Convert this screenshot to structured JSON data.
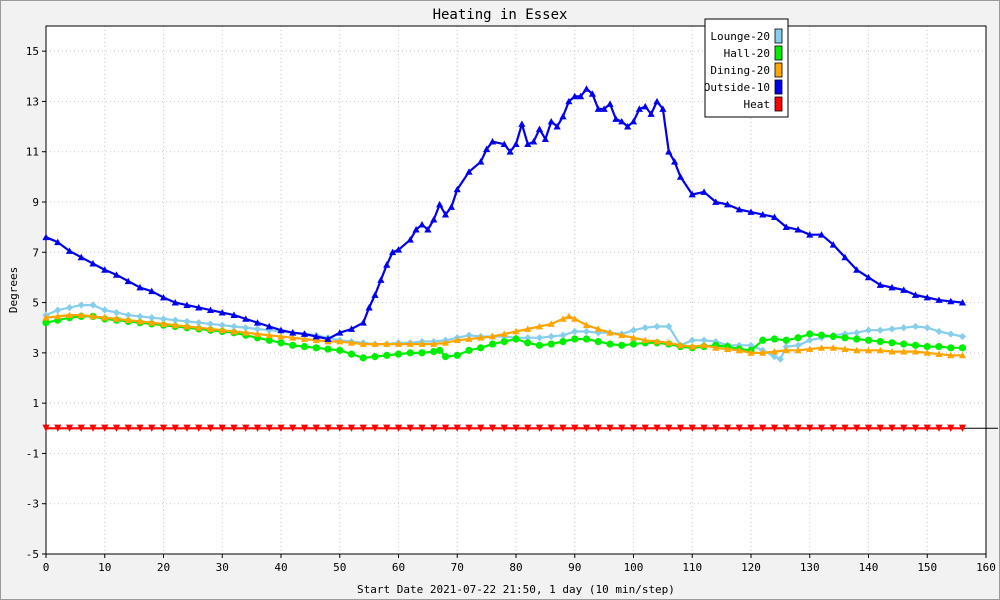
{
  "chart_data": {
    "type": "line",
    "title": "Heating in Essex",
    "xlabel": "Start Date 2021-07-22 21:50, 1 day (10 min/step)",
    "ylabel": "Degrees",
    "xlim": [
      0,
      160
    ],
    "ylim": [
      -5,
      16
    ],
    "x_ticks": [
      0,
      10,
      20,
      30,
      40,
      50,
      60,
      70,
      80,
      90,
      100,
      110,
      120,
      130,
      140,
      150,
      160
    ],
    "y_ticks": [
      -5,
      -3,
      -1,
      1,
      3,
      5,
      7,
      9,
      11,
      13,
      15
    ],
    "grid": true,
    "legend": "top-right",
    "series": [
      {
        "name": "Lounge-20",
        "color": "#87ceeb",
        "marker": "diamond",
        "x": [
          0,
          2,
          4,
          6,
          8,
          10,
          12,
          14,
          16,
          18,
          20,
          22,
          24,
          26,
          28,
          30,
          32,
          34,
          36,
          38,
          40,
          42,
          44,
          46,
          48,
          50,
          52,
          54,
          56,
          58,
          60,
          62,
          64,
          66,
          68,
          70,
          72,
          74,
          76,
          78,
          80,
          82,
          84,
          86,
          88,
          90,
          92,
          94,
          96,
          98,
          100,
          102,
          104,
          106,
          108,
          110,
          112,
          114,
          116,
          118,
          120,
          122,
          124,
          125,
          126,
          128,
          130,
          132,
          134,
          136,
          138,
          140,
          142,
          144,
          146,
          148,
          150,
          152,
          154,
          156
        ],
        "y": [
          4.5,
          4.7,
          4.8,
          4.9,
          4.9,
          4.7,
          4.6,
          4.5,
          4.45,
          4.4,
          4.35,
          4.3,
          4.25,
          4.2,
          4.15,
          4.1,
          4.05,
          4.0,
          3.95,
          3.9,
          3.85,
          3.8,
          3.75,
          3.7,
          3.6,
          3.5,
          3.45,
          3.4,
          3.35,
          3.35,
          3.4,
          3.4,
          3.45,
          3.45,
          3.5,
          3.6,
          3.7,
          3.65,
          3.65,
          3.65,
          3.6,
          3.6,
          3.6,
          3.65,
          3.7,
          3.85,
          3.85,
          3.8,
          3.8,
          3.75,
          3.9,
          4.0,
          4.05,
          4.05,
          3.3,
          3.5,
          3.5,
          3.45,
          3.3,
          3.3,
          3.3,
          3.1,
          2.85,
          2.75,
          3.25,
          3.3,
          3.5,
          3.6,
          3.7,
          3.75,
          3.8,
          3.9,
          3.9,
          3.95,
          4.0,
          4.05,
          4.0,
          3.85,
          3.75,
          3.65
        ]
      },
      {
        "name": "Hall-20",
        "color": "#00ee00",
        "marker": "circle",
        "x": [
          0,
          2,
          4,
          6,
          8,
          10,
          12,
          14,
          16,
          18,
          20,
          22,
          24,
          26,
          28,
          30,
          32,
          34,
          36,
          38,
          40,
          42,
          44,
          46,
          48,
          50,
          52,
          54,
          56,
          58,
          60,
          62,
          64,
          66,
          67,
          68,
          70,
          72,
          74,
          76,
          78,
          80,
          82,
          84,
          86,
          88,
          90,
          92,
          94,
          96,
          98,
          100,
          102,
          104,
          106,
          108,
          110,
          112,
          114,
          116,
          118,
          120,
          122,
          124,
          126,
          128,
          130,
          132,
          134,
          136,
          138,
          140,
          142,
          144,
          146,
          148,
          150,
          152,
          154,
          156
        ],
        "y": [
          4.2,
          4.3,
          4.4,
          4.45,
          4.45,
          4.35,
          4.3,
          4.25,
          4.2,
          4.15,
          4.1,
          4.05,
          4.0,
          3.95,
          3.9,
          3.85,
          3.8,
          3.7,
          3.6,
          3.5,
          3.4,
          3.3,
          3.25,
          3.2,
          3.15,
          3.1,
          2.95,
          2.8,
          2.85,
          2.9,
          2.95,
          3.0,
          3.0,
          3.05,
          3.1,
          2.85,
          2.9,
          3.1,
          3.2,
          3.35,
          3.45,
          3.55,
          3.4,
          3.3,
          3.35,
          3.45,
          3.55,
          3.55,
          3.45,
          3.35,
          3.3,
          3.35,
          3.4,
          3.4,
          3.35,
          3.25,
          3.2,
          3.25,
          3.3,
          3.25,
          3.15,
          3.1,
          3.5,
          3.55,
          3.5,
          3.6,
          3.75,
          3.7,
          3.65,
          3.6,
          3.55,
          3.5,
          3.45,
          3.4,
          3.35,
          3.3,
          3.25,
          3.25,
          3.2,
          3.2
        ]
      },
      {
        "name": "Dining-20",
        "color": "#ffa500",
        "marker": "triangle-up",
        "x": [
          0,
          2,
          4,
          6,
          8,
          10,
          12,
          14,
          16,
          18,
          20,
          22,
          24,
          26,
          28,
          30,
          32,
          34,
          36,
          38,
          40,
          42,
          44,
          46,
          48,
          50,
          52,
          54,
          56,
          58,
          60,
          62,
          64,
          66,
          68,
          70,
          72,
          74,
          76,
          78,
          80,
          82,
          84,
          86,
          88,
          89,
          90,
          92,
          94,
          96,
          98,
          100,
          102,
          104,
          106,
          108,
          110,
          112,
          114,
          116,
          118,
          120,
          122,
          124,
          126,
          128,
          130,
          132,
          134,
          136,
          138,
          140,
          142,
          144,
          146,
          148,
          150,
          152,
          154,
          156
        ],
        "y": [
          4.4,
          4.45,
          4.5,
          4.5,
          4.45,
          4.4,
          4.35,
          4.3,
          4.25,
          4.2,
          4.15,
          4.1,
          4.05,
          4.0,
          3.95,
          3.9,
          3.85,
          3.8,
          3.75,
          3.7,
          3.65,
          3.6,
          3.55,
          3.5,
          3.45,
          3.45,
          3.4,
          3.35,
          3.35,
          3.35,
          3.35,
          3.35,
          3.35,
          3.35,
          3.4,
          3.5,
          3.55,
          3.6,
          3.65,
          3.75,
          3.85,
          3.95,
          4.05,
          4.15,
          4.35,
          4.45,
          4.35,
          4.1,
          3.95,
          3.8,
          3.7,
          3.6,
          3.5,
          3.45,
          3.4,
          3.3,
          3.25,
          3.3,
          3.2,
          3.15,
          3.1,
          3.0,
          3.0,
          3.05,
          3.1,
          3.1,
          3.15,
          3.2,
          3.2,
          3.15,
          3.1,
          3.1,
          3.1,
          3.05,
          3.05,
          3.05,
          3.0,
          2.95,
          2.9,
          2.9
        ]
      },
      {
        "name": "Outside-10",
        "color": "#0000ee",
        "marker": "triangle-up",
        "x": [
          0,
          2,
          4,
          6,
          8,
          10,
          12,
          14,
          16,
          18,
          20,
          22,
          24,
          26,
          28,
          30,
          32,
          34,
          36,
          38,
          40,
          42,
          44,
          46,
          48,
          50,
          52,
          54,
          55,
          56,
          57,
          58,
          59,
          60,
          62,
          63,
          64,
          65,
          66,
          67,
          68,
          69,
          70,
          72,
          74,
          75,
          76,
          78,
          79,
          80,
          81,
          82,
          83,
          84,
          85,
          86,
          87,
          88,
          89,
          90,
          91,
          92,
          93,
          94,
          95,
          96,
          97,
          98,
          99,
          100,
          101,
          102,
          103,
          104,
          105,
          106,
          107,
          108,
          110,
          112,
          114,
          116,
          118,
          120,
          122,
          124,
          126,
          128,
          130,
          132,
          134,
          136,
          138,
          140,
          142,
          144,
          146,
          148,
          150,
          152,
          154,
          156
        ],
        "y": [
          7.6,
          7.4,
          7.05,
          6.8,
          6.55,
          6.3,
          6.1,
          5.85,
          5.6,
          5.45,
          5.2,
          5.0,
          4.9,
          4.8,
          4.7,
          4.6,
          4.5,
          4.35,
          4.2,
          4.05,
          3.9,
          3.8,
          3.75,
          3.65,
          3.55,
          3.8,
          3.95,
          4.2,
          4.8,
          5.3,
          5.9,
          6.5,
          7.0,
          7.1,
          7.5,
          7.9,
          8.1,
          7.9,
          8.3,
          8.9,
          8.5,
          8.8,
          9.5,
          10.2,
          10.6,
          11.1,
          11.4,
          11.3,
          11.0,
          11.3,
          12.1,
          11.3,
          11.4,
          11.9,
          11.5,
          12.2,
          12.0,
          12.4,
          13.0,
          13.2,
          13.2,
          13.5,
          13.3,
          12.7,
          12.7,
          12.9,
          12.3,
          12.2,
          12.0,
          12.2,
          12.7,
          12.8,
          12.5,
          13.0,
          12.7,
          11.0,
          10.6,
          10.0,
          9.3,
          9.4,
          9.0,
          8.9,
          8.7,
          8.6,
          8.5,
          8.4,
          8.0,
          7.9,
          7.7,
          7.7,
          7.3,
          6.8,
          6.3,
          6.0,
          5.7,
          5.6,
          5.5,
          5.3,
          5.2,
          5.1,
          5.05,
          5.0
        ]
      },
      {
        "name": "Heat",
        "color": "#ff0000",
        "marker": "triangle-down",
        "x": [
          0,
          156
        ],
        "y": [
          0,
          0
        ]
      }
    ]
  }
}
